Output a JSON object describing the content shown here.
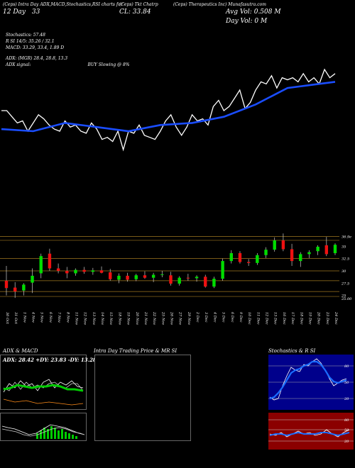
{
  "header": {
    "left_title": "(Ceps) Intra Day ADX,MACD,Stochastics,RSI charts for ",
    "symbol_label": "(Ceps) Tkt Chatrp",
    "right_title": "(Ceps) Therapeutics Inc) Munafasutra.com",
    "close_prefix": "CL:",
    "close_value": "33.84",
    "day_label": "Day:",
    "day_change": "33",
    "avg_vol_label": "Avg Vol:",
    "avg_vol_value": "0.508",
    "avg_vol_unit": "M",
    "day_vol_label": "Day Vol:",
    "day_vol_value": "0",
    "day_vol_unit": "M",
    "date_short": "12 Day"
  },
  "indicators": {
    "stochastics_line": "Stochastics: 57.48",
    "rsi_line": "R                    SI 14/5: 35.26  /  32.1",
    "macd_line": "MACD: 33.29, 33.4, 1.89 D",
    "adx_line": "ADX:                                   (MGR) 28.4,  28.8,  13.3",
    "adx_signal_label": "ADX  signal:",
    "adx_signal_value": "BUY Slowing @ 8%"
  },
  "price_axis": {
    "labels": [
      "36.9e",
      "35",
      "32.5",
      "30",
      "27.5",
      "25",
      "25.00"
    ]
  },
  "date_axis": {
    "labels": [
      "30 Oct",
      "31 Oct",
      "1 Nov",
      "4 Nov",
      "5 Nov",
      "6 Nov",
      "7 Nov",
      "8 Nov",
      "11 Nov",
      "12 Nov",
      "13 Nov",
      "14 Nov",
      "15 Nov",
      "18 Nov",
      "19 Nov",
      "20 Nov",
      "21 Nov",
      "22 Nov",
      "25 Nov",
      "26 Nov",
      "27 Nov",
      "29 Nov",
      "2 Dec",
      "3 Dec",
      "4 Dec",
      "5 Dec",
      "6 Dec",
      "9 Dec",
      "10 Dec",
      "11 Dec",
      "12 Dec",
      "13 Dec",
      "16 Dec",
      "17 Dec",
      "18 Dec",
      "19 Dec",
      "20 Dec",
      "23 Dec",
      "24 Dec"
    ]
  },
  "panels": {
    "adx_title": "ADX  & MACD",
    "adx_readout": "ADX: 28.42  +DY: 23.83  -DY: 13.28",
    "intraday_title": "Intra  Day Trading Price  & MR                    SI",
    "stoch_title": "Stochastics & R                    SI",
    "stoch_labels": [
      "80",
      "50",
      "20"
    ],
    "rsi_labels": [
      "80",
      "50",
      "20"
    ]
  },
  "chart_data": {
    "type": "candlestick",
    "candles": [
      {
        "date": "30 Oct",
        "o": 28.0,
        "h": 31.0,
        "l": 25.0,
        "c": 26.5,
        "up": false
      },
      {
        "date": "31 Oct",
        "o": 26.6,
        "h": 27.7,
        "l": 24.5,
        "c": 25.8,
        "up": false
      },
      {
        "date": "1 Nov",
        "o": 26.0,
        "h": 27.5,
        "l": 25.0,
        "c": 27.2,
        "up": true
      },
      {
        "date": "4 Nov",
        "o": 27.6,
        "h": 30.5,
        "l": 25.5,
        "c": 29.0,
        "up": true
      },
      {
        "date": "5 Nov",
        "o": 29.5,
        "h": 33.5,
        "l": 28.5,
        "c": 33.0,
        "up": true
      },
      {
        "date": "6 Nov",
        "o": 33.5,
        "h": 34.5,
        "l": 30.0,
        "c": 30.5,
        "up": false
      },
      {
        "date": "7 Nov",
        "o": 30.5,
        "h": 31.5,
        "l": 29.5,
        "c": 30.0,
        "up": false
      },
      {
        "date": "8 Nov",
        "o": 30.0,
        "h": 30.8,
        "l": 28.5,
        "c": 29.5,
        "up": false
      },
      {
        "date": "11 Nov",
        "o": 29.5,
        "h": 30.5,
        "l": 29.0,
        "c": 30.2,
        "up": true
      },
      {
        "date": "12 Nov",
        "o": 30.2,
        "h": 30.8,
        "l": 29.4,
        "c": 29.8,
        "up": false
      },
      {
        "date": "13 Nov",
        "o": 29.8,
        "h": 30.6,
        "l": 29.2,
        "c": 30.1,
        "up": true
      },
      {
        "date": "14 Nov",
        "o": 30.1,
        "h": 30.9,
        "l": 29.5,
        "c": 29.6,
        "up": false
      },
      {
        "date": "15 Nov",
        "o": 29.7,
        "h": 30.4,
        "l": 28.0,
        "c": 28.3,
        "up": false
      },
      {
        "date": "18 Nov",
        "o": 28.2,
        "h": 29.5,
        "l": 27.5,
        "c": 29.0,
        "up": true
      },
      {
        "date": "19 Nov",
        "o": 29.0,
        "h": 29.6,
        "l": 27.8,
        "c": 28.2,
        "up": false
      },
      {
        "date": "20 Nov",
        "o": 28.3,
        "h": 29.4,
        "l": 27.9,
        "c": 29.1,
        "up": true
      },
      {
        "date": "21 Nov",
        "o": 29.1,
        "h": 29.9,
        "l": 28.4,
        "c": 28.6,
        "up": false
      },
      {
        "date": "22 Nov",
        "o": 28.6,
        "h": 29.6,
        "l": 27.7,
        "c": 29.2,
        "up": true
      },
      {
        "date": "25 Nov",
        "o": 29.2,
        "h": 30.0,
        "l": 28.7,
        "c": 29.3,
        "up": true
      },
      {
        "date": "26 Nov",
        "o": 29.1,
        "h": 29.8,
        "l": 27.0,
        "c": 27.4,
        "up": false
      },
      {
        "date": "27 Nov",
        "o": 27.4,
        "h": 28.9,
        "l": 27.0,
        "c": 28.6,
        "up": true
      },
      {
        "date": "29 Nov",
        "o": 28.6,
        "h": 29.4,
        "l": 28.0,
        "c": 28.5,
        "up": false
      },
      {
        "date": "2 Dec",
        "o": 28.5,
        "h": 29.1,
        "l": 27.8,
        "c": 28.8,
        "up": true
      },
      {
        "date": "3 Dec",
        "o": 28.8,
        "h": 29.2,
        "l": 26.6,
        "c": 26.8,
        "up": false
      },
      {
        "date": "4 Dec",
        "o": 26.8,
        "h": 28.8,
        "l": 26.5,
        "c": 28.4,
        "up": true
      },
      {
        "date": "5 Dec",
        "o": 28.4,
        "h": 32.5,
        "l": 28.0,
        "c": 32.0,
        "up": true
      },
      {
        "date": "6 Dec",
        "o": 32.0,
        "h": 34.2,
        "l": 31.5,
        "c": 33.6,
        "up": true
      },
      {
        "date": "9 Dec",
        "o": 33.6,
        "h": 34.0,
        "l": 31.5,
        "c": 31.8,
        "up": false
      },
      {
        "date": "10 Dec",
        "o": 31.8,
        "h": 32.4,
        "l": 31.0,
        "c": 31.6,
        "up": false
      },
      {
        "date": "11 Dec",
        "o": 31.6,
        "h": 33.6,
        "l": 31.2,
        "c": 33.2,
        "up": true
      },
      {
        "date": "12 Dec",
        "o": 33.2,
        "h": 34.8,
        "l": 32.6,
        "c": 34.3,
        "up": true
      },
      {
        "date": "13 Dec",
        "o": 34.3,
        "h": 36.8,
        "l": 33.9,
        "c": 36.2,
        "up": true
      },
      {
        "date": "16 Dec",
        "o": 36.2,
        "h": 37.6,
        "l": 34.0,
        "c": 34.4,
        "up": false
      },
      {
        "date": "17 Dec",
        "o": 34.4,
        "h": 35.5,
        "l": 31.0,
        "c": 32.0,
        "up": false
      },
      {
        "date": "18 Dec",
        "o": 32.0,
        "h": 33.8,
        "l": 30.8,
        "c": 33.4,
        "up": true
      },
      {
        "date": "19 Dec",
        "o": 33.4,
        "h": 34.2,
        "l": 32.6,
        "c": 33.8,
        "up": true
      },
      {
        "date": "20 Dec",
        "o": 34.0,
        "h": 35.2,
        "l": 33.2,
        "c": 34.9,
        "up": true
      },
      {
        "date": "23 Dec",
        "o": 35.2,
        "h": 36.9,
        "l": 33.0,
        "c": 33.4,
        "up": false
      },
      {
        "date": "24 Dec",
        "o": 33.6,
        "h": 35.6,
        "l": 33.2,
        "c": 35.3,
        "up": true
      }
    ],
    "ylim": [
      22.5,
      38.5
    ],
    "levels": [
      37.0,
      36.2,
      32.5,
      30.0,
      28.0,
      25.8,
      24.8
    ],
    "rsi_series": [
      [
        0,
        60
      ],
      [
        1,
        60
      ],
      [
        2,
        57
      ],
      [
        3,
        54
      ],
      [
        4,
        55
      ],
      [
        5,
        50
      ],
      [
        6,
        54
      ],
      [
        7,
        58
      ],
      [
        8,
        56
      ],
      [
        9,
        53
      ],
      [
        10,
        51
      ],
      [
        11,
        50
      ],
      [
        12,
        55
      ],
      [
        13,
        52
      ],
      [
        14,
        53
      ],
      [
        15,
        50
      ],
      [
        16,
        49
      ],
      [
        17,
        54
      ],
      [
        18,
        51
      ],
      [
        19,
        46
      ],
      [
        20,
        47
      ],
      [
        21,
        45
      ],
      [
        22,
        50
      ],
      [
        23,
        41
      ],
      [
        24,
        50
      ],
      [
        25,
        49
      ],
      [
        26,
        53
      ],
      [
        27,
        48
      ],
      [
        28,
        47
      ],
      [
        29,
        46
      ],
      [
        30,
        50
      ],
      [
        31,
        55
      ],
      [
        32,
        58
      ],
      [
        33,
        52
      ],
      [
        34,
        48
      ],
      [
        35,
        52
      ],
      [
        36,
        58
      ],
      [
        37,
        55
      ],
      [
        38,
        56
      ],
      [
        39,
        53
      ],
      [
        40,
        62
      ],
      [
        41,
        65
      ],
      [
        42,
        60
      ],
      [
        43,
        62
      ],
      [
        44,
        66
      ],
      [
        45,
        70
      ],
      [
        46,
        61
      ],
      [
        47,
        64
      ],
      [
        48,
        70
      ],
      [
        49,
        74
      ],
      [
        50,
        73
      ],
      [
        51,
        77
      ],
      [
        52,
        71
      ],
      [
        53,
        76
      ],
      [
        54,
        75
      ],
      [
        55,
        76
      ],
      [
        56,
        74
      ],
      [
        57,
        78
      ],
      [
        58,
        74
      ],
      [
        59,
        76
      ],
      [
        60,
        73
      ],
      [
        61,
        80
      ],
      [
        62,
        76
      ],
      [
        63,
        78
      ]
    ],
    "rsi_smooth": [
      [
        0,
        51
      ],
      [
        6,
        50
      ],
      [
        12,
        54
      ],
      [
        18,
        52
      ],
      [
        24,
        50
      ],
      [
        30,
        53
      ],
      [
        36,
        54
      ],
      [
        42,
        57
      ],
      [
        48,
        63
      ],
      [
        54,
        71
      ],
      [
        60,
        73
      ],
      [
        63,
        74
      ]
    ]
  },
  "colors": {
    "up": "#00dd00",
    "down": "#ee1111",
    "rsi_line": "#ffffff",
    "rsi_avg": "#1a4dff",
    "stoch_bg": "#00008b",
    "rsi_bg": "#8b0000",
    "level_line": "#a07820"
  }
}
